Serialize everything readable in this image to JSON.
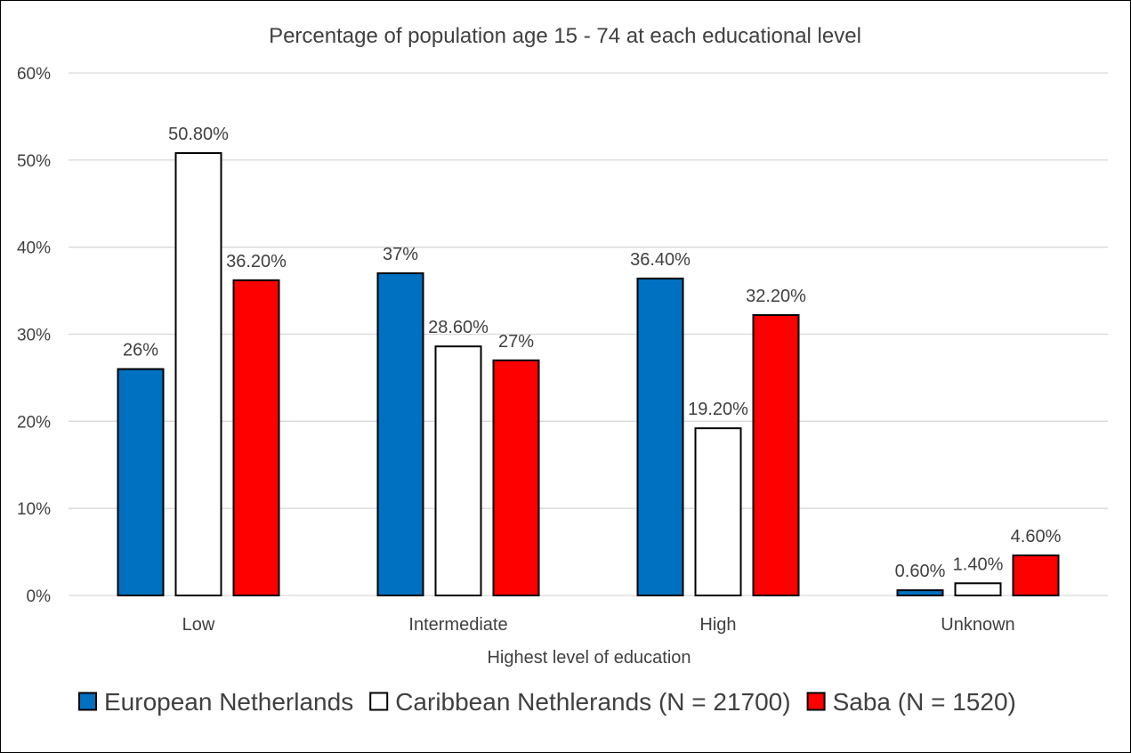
{
  "chart_data": {
    "type": "bar",
    "title": "Percentage of population age 15 - 74 at each educational level",
    "xlabel": "Highest level of education",
    "ylabel": "",
    "ylim": [
      0,
      60
    ],
    "yticks": [
      "0%",
      "10%",
      "20%",
      "30%",
      "40%",
      "50%",
      "60%"
    ],
    "grid": true,
    "legend_position": "bottom",
    "categories": [
      "Low",
      "Intermediate",
      "High",
      "Unknown"
    ],
    "series": [
      {
        "name": "European Netherlands",
        "color": "#0070c0",
        "values": [
          26,
          37,
          36.4,
          0.6
        ],
        "labels": [
          "26%",
          "37%",
          "36.40%",
          "0.60%"
        ]
      },
      {
        "name": "Caribbean Nethlerands (N = 21700)",
        "color": "#ffffff",
        "values": [
          50.8,
          28.6,
          19.2,
          1.4
        ],
        "labels": [
          "50.80%",
          "28.60%",
          "19.20%",
          "1.40%"
        ]
      },
      {
        "name": "Saba (N = 1520)",
        "color": "#ff0000",
        "values": [
          36.2,
          27,
          32.2,
          4.6
        ],
        "labels": [
          "36.20%",
          "27%",
          "32.20%",
          "4.60%"
        ]
      }
    ]
  }
}
